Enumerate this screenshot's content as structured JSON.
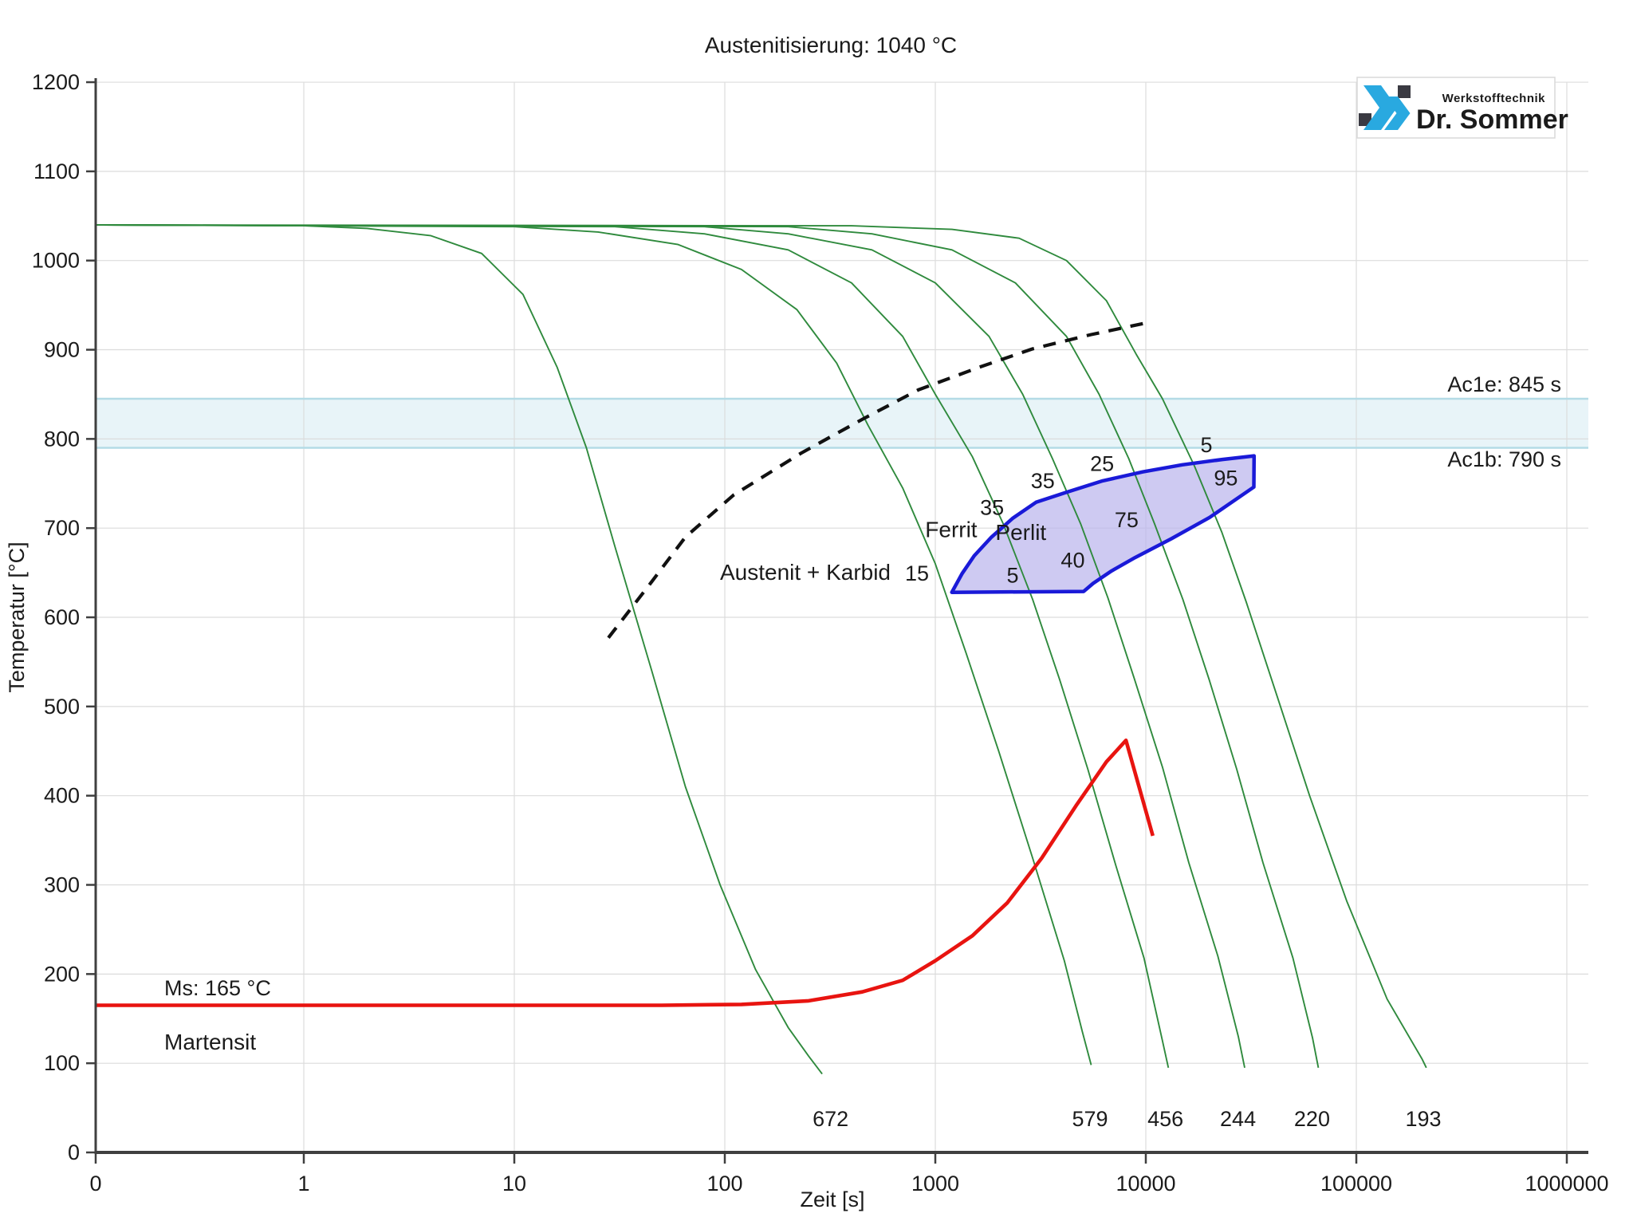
{
  "chart_data": {
    "type": "line",
    "title": "Austenitisierung: 1040 °C",
    "xlabel": "Zeit [s]",
    "ylabel": "Temperatur [°C]",
    "x_scale": "log",
    "x_ticks": [
      {
        "label": "0",
        "t": 0
      },
      {
        "label": "1",
        "t": 1
      },
      {
        "label": "10",
        "t": 10
      },
      {
        "label": "100",
        "t": 100
      },
      {
        "label": "1000",
        "t": 1000
      },
      {
        "label": "10000",
        "t": 10000
      },
      {
        "label": "100000",
        "t": 100000
      },
      {
        "label": "1000000",
        "t": 1000000
      }
    ],
    "ylim": [
      0,
      1200
    ],
    "y_tick_step": 100,
    "grid": true,
    "colors": {
      "cooling_curve": "#2f8a3d",
      "quench_curve": "#e81410",
      "region_stroke": "#1a1ad8",
      "region_fill": "#b9b3ed",
      "band_fill": "#e8f4f8",
      "band_edge": "#b4dbe6",
      "dashed_boundary": "#111111",
      "grid": "#dcdcdc",
      "axis": "#3f3f3f"
    },
    "ac_band": {
      "top_temp": 845,
      "bottom_temp": 790,
      "top_label": "Ac1e: 845 s",
      "bottom_label": "Ac1b: 790 s"
    },
    "ms_line": {
      "label": "Ms: 165 °C",
      "temp": 165,
      "phase_label": "Martensit"
    },
    "dashed_boundary": {
      "label": "Austenit + Karbid",
      "label_pos": {
        "t": 240,
        "T": 643
      },
      "points": [
        [
          28,
          577
        ],
        [
          45,
          640
        ],
        [
          65,
          690
        ],
        [
          110,
          737
        ],
        [
          230,
          784
        ],
        [
          450,
          822
        ],
        [
          830,
          855
        ],
        [
          1600,
          880
        ],
        [
          2900,
          901
        ],
        [
          5500,
          917
        ],
        [
          10000,
          930
        ]
      ]
    },
    "cooling_curves": [
      {
        "hardness": 672,
        "points": [
          [
            0,
            1040
          ],
          [
            1,
            1039
          ],
          [
            2,
            1036
          ],
          [
            4,
            1028
          ],
          [
            7,
            1008
          ],
          [
            11,
            962
          ],
          [
            16,
            880
          ],
          [
            22,
            790
          ],
          [
            30,
            680
          ],
          [
            45,
            540
          ],
          [
            65,
            410
          ],
          [
            95,
            300
          ],
          [
            140,
            205
          ],
          [
            200,
            140
          ],
          [
            250,
            108
          ],
          [
            290,
            88
          ]
        ]
      },
      {
        "hardness": 579,
        "points": [
          [
            0,
            1040
          ],
          [
            10,
            1038
          ],
          [
            25,
            1032
          ],
          [
            60,
            1018
          ],
          [
            120,
            990
          ],
          [
            220,
            945
          ],
          [
            340,
            885
          ],
          [
            480,
            815
          ],
          [
            700,
            745
          ],
          [
            1000,
            660
          ],
          [
            1400,
            560
          ],
          [
            2000,
            450
          ],
          [
            2900,
            330
          ],
          [
            4100,
            215
          ],
          [
            5000,
            135
          ],
          [
            5500,
            98
          ]
        ]
      },
      {
        "hardness": 456,
        "points": [
          [
            0,
            1040
          ],
          [
            30,
            1038
          ],
          [
            80,
            1030
          ],
          [
            200,
            1012
          ],
          [
            400,
            975
          ],
          [
            700,
            915
          ],
          [
            1000,
            850
          ],
          [
            1500,
            780
          ],
          [
            2100,
            705
          ],
          [
            2900,
            620
          ],
          [
            3900,
            530
          ],
          [
            5300,
            430
          ],
          [
            7200,
            322
          ],
          [
            9800,
            218
          ],
          [
            12000,
            125
          ],
          [
            12800,
            95
          ]
        ]
      },
      {
        "hardness": 244,
        "points": [
          [
            0,
            1040
          ],
          [
            80,
            1038
          ],
          [
            200,
            1030
          ],
          [
            500,
            1012
          ],
          [
            1000,
            975
          ],
          [
            1800,
            915
          ],
          [
            2600,
            850
          ],
          [
            3600,
            778
          ],
          [
            4900,
            705
          ],
          [
            6600,
            622
          ],
          [
            8800,
            532
          ],
          [
            12000,
            432
          ],
          [
            16000,
            325
          ],
          [
            22000,
            220
          ],
          [
            27500,
            130
          ],
          [
            29500,
            95
          ]
        ]
      },
      {
        "hardness": 220,
        "points": [
          [
            0,
            1040
          ],
          [
            200,
            1038
          ],
          [
            500,
            1030
          ],
          [
            1200,
            1012
          ],
          [
            2400,
            975
          ],
          [
            4200,
            915
          ],
          [
            6000,
            850
          ],
          [
            8300,
            778
          ],
          [
            11000,
            705
          ],
          [
            15000,
            620
          ],
          [
            20000,
            530
          ],
          [
            27000,
            430
          ],
          [
            36000,
            325
          ],
          [
            50000,
            218
          ],
          [
            62000,
            128
          ],
          [
            66000,
            95
          ]
        ]
      },
      {
        "hardness": 193,
        "points": [
          [
            0,
            1040
          ],
          [
            400,
            1039
          ],
          [
            1200,
            1035
          ],
          [
            2500,
            1025
          ],
          [
            4200,
            1000
          ],
          [
            6500,
            955
          ],
          [
            9000,
            895
          ],
          [
            12000,
            845
          ],
          [
            17000,
            770
          ],
          [
            23000,
            695
          ],
          [
            30000,
            617
          ],
          [
            42000,
            512
          ],
          [
            60000,
            400
          ],
          [
            90000,
            282
          ],
          [
            140000,
            172
          ],
          [
            205000,
            105
          ],
          [
            215000,
            95
          ]
        ]
      }
    ],
    "hardness_labels": [
      {
        "text": "672",
        "t": 318
      },
      {
        "text": "579",
        "t": 5430
      },
      {
        "text": "456",
        "t": 12400
      },
      {
        "text": "244",
        "t": 27400
      },
      {
        "text": "220",
        "t": 61600
      },
      {
        "text": "193",
        "t": 208000
      }
    ],
    "quench_curve": {
      "points": [
        [
          0,
          165
        ],
        [
          50,
          165
        ],
        [
          120,
          166
        ],
        [
          250,
          170
        ],
        [
          450,
          180
        ],
        [
          700,
          193
        ],
        [
          1000,
          215
        ],
        [
          1500,
          243
        ],
        [
          2200,
          280
        ],
        [
          3200,
          330
        ],
        [
          4700,
          390
        ],
        [
          6500,
          438
        ],
        [
          8050,
          462
        ],
        [
          10800,
          355
        ]
      ]
    },
    "perlite_region": {
      "outline": [
        [
          1198,
          628
        ],
        [
          1340,
          649
        ],
        [
          1530,
          669
        ],
        [
          1850,
          690
        ],
        [
          2330,
          711
        ],
        [
          3010,
          729
        ],
        [
          4170,
          740
        ],
        [
          6240,
          753
        ],
        [
          9660,
          763
        ],
        [
          14900,
          771
        ],
        [
          23100,
          777
        ],
        [
          32700,
          781
        ],
        [
          32600,
          746
        ],
        [
          20100,
          712
        ],
        [
          13200,
          688
        ],
        [
          8900,
          667
        ],
        [
          6870,
          652
        ],
        [
          5620,
          638
        ],
        [
          5070,
          629
        ],
        [
          1198,
          628
        ]
      ],
      "phase_labels": [
        {
          "text": "Ferrit",
          "t": 1190,
          "T": 698
        },
        {
          "text": "Perlit",
          "t": 2550,
          "T": 695
        }
      ],
      "percent_labels": [
        {
          "text": "15",
          "t": 818,
          "T": 649
        },
        {
          "text": "5",
          "t": 2330,
          "T": 647
        },
        {
          "text": "40",
          "t": 4500,
          "T": 664
        },
        {
          "text": "75",
          "t": 8100,
          "T": 709
        },
        {
          "text": "95",
          "t": 24000,
          "T": 756
        },
        {
          "text": "35",
          "t": 1860,
          "T": 723
        },
        {
          "text": "35",
          "t": 3240,
          "T": 753
        },
        {
          "text": "25",
          "t": 6200,
          "T": 772
        },
        {
          "text": "5",
          "t": 19400,
          "T": 793
        }
      ]
    }
  },
  "logo": {
    "brand": "Dr. Sommer",
    "tagline": "Werkstofftechnik",
    "accent_color": "#29a9e0",
    "dark_color": "#3a3a42"
  }
}
